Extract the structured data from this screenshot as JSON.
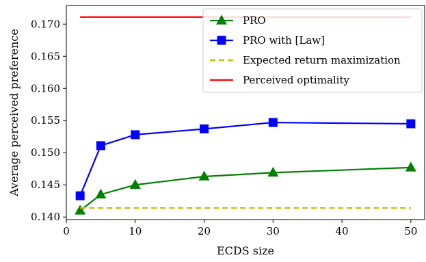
{
  "chart_data": {
    "type": "line",
    "xlabel": "ECDS size",
    "ylabel": "Average perceived preference",
    "xlim": [
      0,
      52
    ],
    "ylim": [
      0.1396,
      0.1729
    ],
    "xticks": [
      0,
      10,
      20,
      30,
      40,
      50
    ],
    "xtick_labels": [
      "0",
      "10",
      "20",
      "30",
      "40",
      "50"
    ],
    "yticks": [
      0.14,
      0.145,
      0.15,
      0.155,
      0.16,
      0.165,
      0.17
    ],
    "ytick_labels": [
      "0.140",
      "0.145",
      "0.150",
      "0.155",
      "0.160",
      "0.165",
      "0.170"
    ],
    "grid": false,
    "legend_position": "upper-right",
    "series": [
      {
        "name": "PRO",
        "color": "#008000",
        "marker": "triangle",
        "line_style": "solid",
        "x": [
          2,
          5,
          10,
          20,
          30,
          50
        ],
        "y": [
          0.141,
          0.1435,
          0.145,
          0.1463,
          0.1469,
          0.1477
        ]
      },
      {
        "name": "PRO with [Law]",
        "color": "#0000ff",
        "marker": "square",
        "line_style": "solid",
        "x": [
          2,
          5,
          10,
          20,
          30,
          50
        ],
        "y": [
          0.1433,
          0.1511,
          0.1528,
          0.1537,
          0.1547,
          0.1545
        ]
      },
      {
        "name": "Expected return maximization",
        "color": "#bfbf00",
        "marker": "none",
        "line_style": "dashed",
        "x": [
          2,
          50
        ],
        "y": [
          0.1414,
          0.1414
        ]
      },
      {
        "name": "Perceived optimality",
        "color": "#ff0000",
        "marker": "none",
        "line_style": "solid",
        "x": [
          2,
          50
        ],
        "y": [
          0.1711,
          0.1711
        ]
      }
    ]
  }
}
